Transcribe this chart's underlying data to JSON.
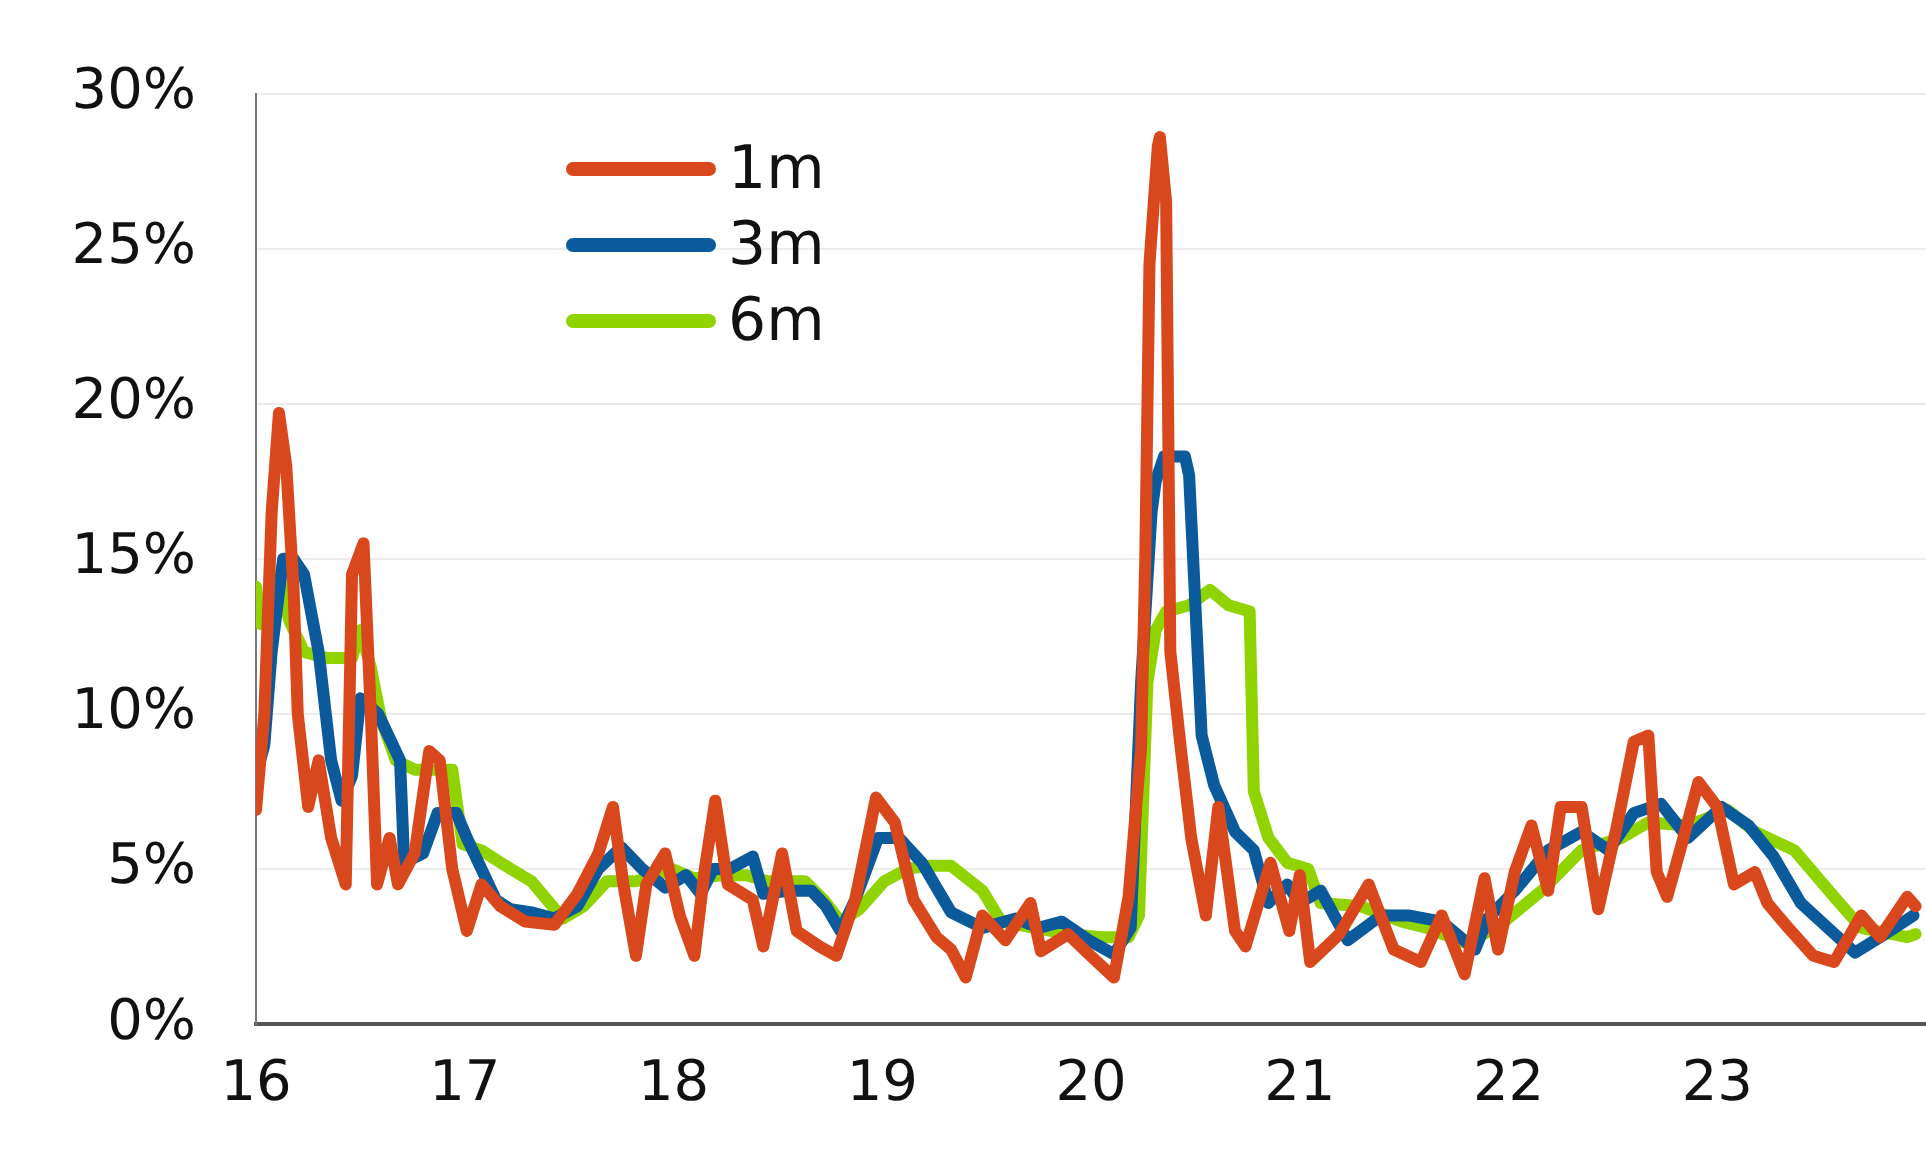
{
  "chart_data": {
    "type": "line",
    "xlim": [
      2016,
      2024
    ],
    "xticks": [
      {
        "value": 2016,
        "label": "16"
      },
      {
        "value": 2017,
        "label": "17"
      },
      {
        "value": 2018,
        "label": "18"
      },
      {
        "value": 2019,
        "label": "19"
      },
      {
        "value": 2020,
        "label": "20"
      },
      {
        "value": 2021,
        "label": "21"
      },
      {
        "value": 2022,
        "label": "22"
      },
      {
        "value": 2023,
        "label": "23"
      }
    ],
    "ylim": [
      0,
      30
    ],
    "yticks": [
      {
        "value": 0,
        "label": "0%"
      },
      {
        "value": 5,
        "label": "5%"
      },
      {
        "value": 10,
        "label": "10%"
      },
      {
        "value": 15,
        "label": "15%"
      },
      {
        "value": 20,
        "label": "20%"
      },
      {
        "value": 25,
        "label": "25%"
      },
      {
        "value": 30,
        "label": "30%"
      }
    ],
    "grid": "y",
    "legend": "top left",
    "marker": "none",
    "line_style": "solid",
    "series": [
      {
        "name": "1m",
        "color": "#d9481c",
        "x": [
          2016.0,
          2016.04,
          2016.075,
          2016.11,
          2016.145,
          2016.18,
          2016.2,
          2016.25,
          2016.3,
          2016.36,
          2016.43,
          2016.46,
          2016.515,
          2016.55,
          2016.58,
          2016.64,
          2016.68,
          2016.76,
          2016.83,
          2016.88,
          2016.94,
          2017.01,
          2017.08,
          2017.17,
          2017.29,
          2017.43,
          2017.54,
          2017.64,
          2017.71,
          2017.76,
          2017.82,
          2017.87,
          2017.96,
          2018.03,
          2018.1,
          2018.15,
          2018.2,
          2018.26,
          2018.38,
          2018.43,
          2018.52,
          2018.59,
          2018.7,
          2018.78,
          2018.87,
          2018.97,
          2019.06,
          2019.15,
          2019.26,
          2019.33,
          2019.4,
          2019.48,
          2019.59,
          2019.71,
          2019.76,
          2019.89,
          2019.99,
          2020.11,
          2020.18,
          2020.24,
          2020.26,
          2020.28,
          2020.32,
          2020.33,
          2020.36,
          2020.38,
          2020.43,
          2020.48,
          2020.55,
          2020.61,
          2020.69,
          2020.74,
          2020.86,
          2020.95,
          2021.0,
          2021.05,
          2021.19,
          2021.26,
          2021.33,
          2021.45,
          2021.58,
          2021.68,
          2021.79,
          2021.885,
          2021.95,
          2022.03,
          2022.11,
          2022.19,
          2022.25,
          2022.35,
          2022.43,
          2022.52,
          2022.6,
          2022.67,
          2022.71,
          2022.76,
          2022.83,
          2022.91,
          2023.0,
          2023.08,
          2023.18,
          2023.24,
          2023.34,
          2023.46,
          2023.56,
          2023.69,
          2023.78,
          2023.91,
          2023.95
        ],
        "values": [
          6.9,
          10,
          16.5,
          19.7,
          18,
          14,
          10,
          7,
          8.5,
          6,
          4.5,
          14.5,
          15.5,
          10,
          4.5,
          6,
          4.5,
          5.5,
          8.8,
          8.5,
          5,
          3,
          4.5,
          3.8,
          3.3,
          3.2,
          4.2,
          5.5,
          7,
          4.5,
          2.2,
          4.5,
          5.5,
          3.5,
          2.2,
          5,
          7.2,
          4.5,
          4,
          2.5,
          5.5,
          3,
          2.5,
          2.2,
          4,
          7.3,
          6.5,
          4,
          2.8,
          2.4,
          1.5,
          3.5,
          2.7,
          3.9,
          2.35,
          2.9,
          2.25,
          1.5,
          4.1,
          8.9,
          15,
          24.5,
          28.3,
          28.6,
          26.5,
          12,
          8.9,
          6,
          3.5,
          7,
          3,
          2.5,
          5.2,
          3,
          4.8,
          2,
          2.9,
          3.7,
          4.5,
          2.4,
          2,
          3.5,
          1.6,
          4.7,
          2.4,
          4.9,
          6.4,
          4.3,
          7,
          7,
          3.7,
          6.4,
          9.1,
          9.3,
          4.9,
          4.1,
          5.8,
          7.8,
          7,
          4.5,
          4.9,
          3.9,
          3.1,
          2.2,
          2,
          3.5,
          2.8,
          4.1,
          3.8
        ]
      },
      {
        "name": "3m",
        "color": "#0a5a9c",
        "x": [
          2016.0,
          2016.04,
          2016.075,
          2016.13,
          2016.18,
          2016.23,
          2016.3,
          2016.36,
          2016.41,
          2016.46,
          2016.5,
          2016.585,
          2016.69,
          2016.71,
          2016.8,
          2016.87,
          2016.96,
          2017.01,
          2017.08,
          2017.15,
          2017.22,
          2017.32,
          2017.43,
          2017.54,
          2017.64,
          2017.75,
          2017.85,
          2017.96,
          2018.06,
          2018.13,
          2018.19,
          2018.27,
          2018.38,
          2018.43,
          2018.56,
          2018.66,
          2018.73,
          2018.8,
          2018.87,
          2018.98,
          2019.08,
          2019.19,
          2019.33,
          2019.48,
          2019.64,
          2019.75,
          2019.86,
          2019.99,
          2020.11,
          2020.19,
          2020.24,
          2020.29,
          2020.31,
          2020.35,
          2020.45,
          2020.47,
          2020.53,
          2020.59,
          2020.69,
          2020.78,
          2020.85,
          2020.94,
          2021.0,
          2021.1,
          2021.23,
          2021.39,
          2021.52,
          2021.68,
          2021.84,
          2021.9,
          2022.03,
          2022.19,
          2022.35,
          2022.48,
          2022.6,
          2022.73,
          2022.86,
          2023.02,
          2023.15,
          2023.27,
          2023.4,
          2023.53,
          2023.66,
          2023.78,
          2023.94
        ],
        "values": [
          8,
          9,
          12,
          15,
          15,
          14.5,
          12,
          8.5,
          7.2,
          8,
          10.5,
          10,
          8.5,
          5.2,
          5.5,
          6.8,
          6.8,
          6,
          5,
          4,
          3.7,
          3.6,
          3.4,
          3.8,
          5,
          5.7,
          5,
          4.4,
          4.8,
          4.2,
          5,
          5,
          5.4,
          4.2,
          4.3,
          4.3,
          3.8,
          3,
          4,
          6,
          6,
          5.2,
          3.6,
          3.1,
          3.4,
          3.1,
          3.3,
          2.7,
          2.25,
          3.1,
          11,
          16.5,
          17.5,
          18.3,
          18.3,
          17.7,
          9.3,
          7.7,
          6.2,
          5.6,
          3.9,
          4.5,
          3.9,
          4.3,
          2.7,
          3.5,
          3.5,
          3.3,
          2.4,
          3.4,
          4.3,
          5.6,
          6.2,
          5.6,
          6.8,
          7.1,
          6,
          7,
          6.4,
          5.4,
          3.9,
          3.1,
          2.3,
          2.8,
          3.5
        ]
      },
      {
        "name": "6m",
        "color": "#8fd400",
        "x": [
          2016.0,
          2016.02,
          2016.075,
          2016.11,
          2016.16,
          2016.23,
          2016.34,
          2016.46,
          2016.5,
          2016.55,
          2016.6,
          2016.67,
          2016.76,
          2016.94,
          2016.99,
          2017.08,
          2017.22,
          2017.32,
          2017.47,
          2017.57,
          2017.68,
          2017.82,
          2017.92,
          2017.99,
          2018.1,
          2018.24,
          2018.35,
          2018.45,
          2018.63,
          2018.72,
          2018.8,
          2018.89,
          2019.01,
          2019.12,
          2019.22,
          2019.33,
          2019.48,
          2019.57,
          2019.73,
          2019.89,
          2020.05,
          2020.18,
          2020.23,
          2020.27,
          2020.31,
          2020.36,
          2020.47,
          2020.57,
          2020.66,
          2020.76,
          2020.78,
          2020.85,
          2020.94,
          2021.04,
          2021.1,
          2021.29,
          2021.49,
          2021.61,
          2021.8,
          2021.96,
          2022.16,
          2022.35,
          2022.54,
          2022.67,
          2022.86,
          2023.05,
          2023.18,
          2023.37,
          2023.56,
          2023.69,
          2023.91,
          2023.95
        ],
        "values": [
          14.1,
          12.9,
          13.2,
          14.5,
          13,
          12,
          11.8,
          11.8,
          12.7,
          11.5,
          9.8,
          8.5,
          8.2,
          8.2,
          5.8,
          5.6,
          5,
          4.6,
          3.4,
          3.8,
          4.6,
          4.6,
          4.8,
          5,
          4.7,
          4.8,
          4.8,
          4.6,
          4.6,
          4,
          3.3,
          3.7,
          4.6,
          5,
          5.1,
          5.1,
          4.3,
          3.3,
          3.1,
          2.9,
          2.8,
          2.8,
          3.5,
          11,
          12.7,
          13.3,
          13.5,
          14,
          13.5,
          13.3,
          7.5,
          6,
          5.2,
          5,
          3.9,
          3.8,
          3.3,
          3.1,
          2.6,
          3.2,
          4.3,
          5.6,
          6,
          6.5,
          6.4,
          6.9,
          6.2,
          5.6,
          4.1,
          3.1,
          2.8,
          2.9
        ]
      }
    ]
  }
}
